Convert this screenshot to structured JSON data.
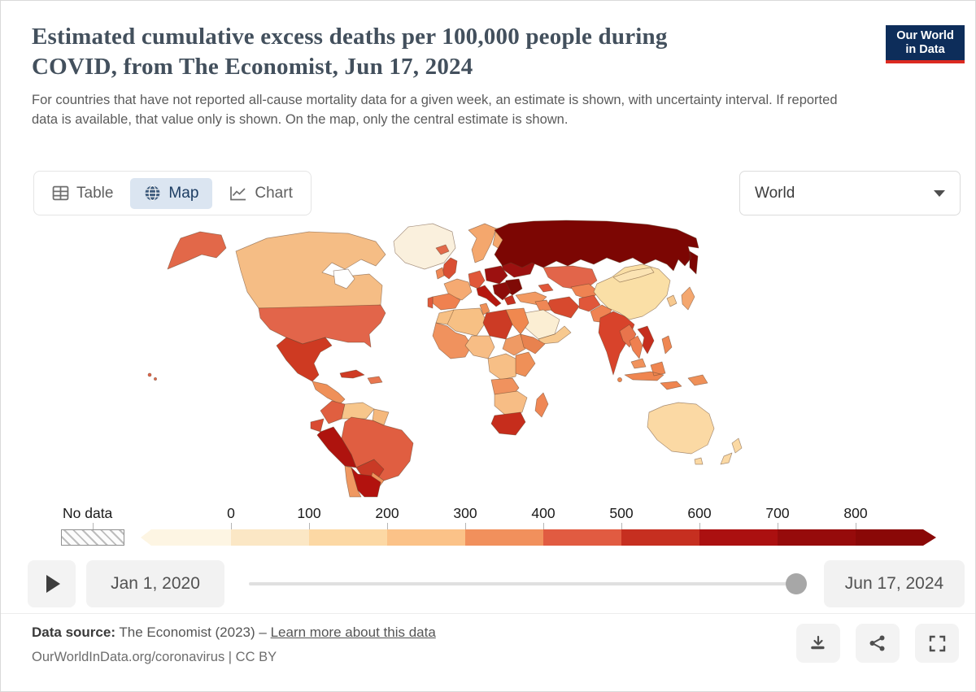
{
  "header": {
    "title_lines": [
      "Estimated cumulative excess deaths per 100,000 people during",
      "COVID, from The Economist, Jun 17, 2024"
    ],
    "subtitle": "For countries that have not reported all-cause mortality data for a given week, an estimate is shown, with uncertainty interval. If reported data is available, that value only is shown. On the map, only the central estimate is shown.",
    "logo": {
      "line1": "Our World",
      "line2": "in Data",
      "navy": "#0d2d5a",
      "red": "#dc2a20"
    }
  },
  "tabs": [
    {
      "id": "table",
      "label": "Table",
      "active": false
    },
    {
      "id": "map",
      "label": "Map",
      "active": true
    },
    {
      "id": "chart",
      "label": "Chart",
      "active": false
    }
  ],
  "region_dropdown": {
    "value": "World"
  },
  "colors": {
    "active_tab_bg": "#dbe5f1",
    "active_tab_text": "#1d3d63",
    "title_text": "#43505d"
  },
  "legend": {
    "nodata_label": "No data",
    "tick_labels": [
      "0",
      "100",
      "200",
      "300",
      "400",
      "500",
      "600",
      "700",
      "800"
    ],
    "colors": [
      "#fdf5e3",
      "#fbe7c5",
      "#fcd8a4",
      "#fbc288",
      "#f1905c",
      "#e15b41",
      "#c62f20",
      "#ab1010",
      "#960b0b",
      "#8a0807"
    ]
  },
  "timeline": {
    "start_label": "Jan 1, 2020",
    "end_label": "Jun 17, 2024",
    "slider_position_percent": 98.2
  },
  "footer": {
    "source_prefix": "Data source:",
    "source_text": "The Economist (2023)",
    "separator": "–",
    "link_label": "Learn more about this data",
    "attribution": "OurWorldInData.org/coronavirus | CC BY"
  },
  "map": {
    "regions": [
      {
        "id": "greenland",
        "color": "#faf0dd"
      },
      {
        "id": "canada",
        "color": "#f5bd85"
      },
      {
        "id": "alaska",
        "color": "#e26849"
      },
      {
        "id": "usa",
        "color": "#e2654a"
      },
      {
        "id": "mexico",
        "color": "#ce3a22"
      },
      {
        "id": "central-america",
        "color": "#ef9058"
      },
      {
        "id": "cuba",
        "color": "#cf3b24"
      },
      {
        "id": "hispaniola",
        "color": "#e8764f"
      },
      {
        "id": "hawaii",
        "color": "#e2654a"
      },
      {
        "id": "colombia",
        "color": "#e05f40"
      },
      {
        "id": "venezuela",
        "color": "#f7c68b"
      },
      {
        "id": "guyanas",
        "color": "#f5b87c"
      },
      {
        "id": "ecuador",
        "color": "#d94b31"
      },
      {
        "id": "peru",
        "color": "#ae130e"
      },
      {
        "id": "brazil",
        "color": "#e05e41"
      },
      {
        "id": "bolivia",
        "color": "#c93a26"
      },
      {
        "id": "paraguay",
        "color": "#f0925c"
      },
      {
        "id": "chile",
        "color": "#ef9861"
      },
      {
        "id": "argentina",
        "color": "#b2120e"
      },
      {
        "id": "iceland",
        "color": "#e26a4a"
      },
      {
        "id": "uk",
        "color": "#d94f33"
      },
      {
        "id": "ireland",
        "color": "#ef8755"
      },
      {
        "id": "norway-sweden",
        "color": "#f4a76d"
      },
      {
        "id": "finland",
        "color": "#f4a76d"
      },
      {
        "id": "france",
        "color": "#f5aa72"
      },
      {
        "id": "spain",
        "color": "#ef8150"
      },
      {
        "id": "portugal",
        "color": "#e05b3d"
      },
      {
        "id": "germany",
        "color": "#e0573a"
      },
      {
        "id": "italy",
        "color": "#b5170f"
      },
      {
        "id": "central-europe",
        "color": "#9c1110"
      },
      {
        "id": "balkans",
        "color": "#8c0d0a"
      },
      {
        "id": "romania-bulgaria",
        "color": "#7f0a06"
      },
      {
        "id": "ukraine-belarus",
        "color": "#9c1110"
      },
      {
        "id": "greece",
        "color": "#c62f20"
      },
      {
        "id": "russia",
        "color": "#7c0603"
      },
      {
        "id": "turkey",
        "color": "#f29a62"
      },
      {
        "id": "caucasus",
        "color": "#e0573a"
      },
      {
        "id": "kazakhstan",
        "color": "#e2654a"
      },
      {
        "id": "central-asia",
        "color": "#ef8352"
      },
      {
        "id": "iran",
        "color": "#d7492e"
      },
      {
        "id": "iraq",
        "color": "#ef8755"
      },
      {
        "id": "saudi-arabia",
        "color": "#fbeed3"
      },
      {
        "id": "yemen-oman",
        "color": "#f7c98f"
      },
      {
        "id": "afghanistan",
        "color": "#e0573a"
      },
      {
        "id": "pakistan",
        "color": "#ef8352"
      },
      {
        "id": "india",
        "color": "#d8432b"
      },
      {
        "id": "sri-lanka",
        "color": "#f0884f"
      },
      {
        "id": "china",
        "color": "#fadfa6"
      },
      {
        "id": "mongolia",
        "color": "#fbe3b3"
      },
      {
        "id": "south-korea",
        "color": "#f7c98f"
      },
      {
        "id": "japan",
        "color": "#f4a76f"
      },
      {
        "id": "myanmar",
        "color": "#e8744c"
      },
      {
        "id": "thailand",
        "color": "#ef8050"
      },
      {
        "id": "vietnam",
        "color": "#c62e1e"
      },
      {
        "id": "malaysia",
        "color": "#f0925c"
      },
      {
        "id": "indonesia",
        "color": "#ef8550"
      },
      {
        "id": "philippines",
        "color": "#ef8753"
      },
      {
        "id": "papua-new-guinea",
        "color": "#ef9058"
      },
      {
        "id": "australia",
        "color": "#fbd9a4"
      },
      {
        "id": "tasmania",
        "color": "#fbd9a4"
      },
      {
        "id": "new-zealand",
        "color": "#fbd9a4"
      },
      {
        "id": "morocco",
        "color": "#f7c084"
      },
      {
        "id": "algeria",
        "color": "#f7c084"
      },
      {
        "id": "tunisia",
        "color": "#ef9058"
      },
      {
        "id": "libya",
        "color": "#cc3b25"
      },
      {
        "id": "egypt",
        "color": "#f0884f"
      },
      {
        "id": "west-africa",
        "color": "#f0925e"
      },
      {
        "id": "nigeria-sahel",
        "color": "#f7bd85"
      },
      {
        "id": "sudan",
        "color": "#ef9a64"
      },
      {
        "id": "horn-of-africa",
        "color": "#e8824f"
      },
      {
        "id": "central-africa",
        "color": "#f7bf86"
      },
      {
        "id": "east-africa",
        "color": "#ef9058"
      },
      {
        "id": "angola-zambia",
        "color": "#f0925e"
      },
      {
        "id": "southern-africa",
        "color": "#f7bd85"
      },
      {
        "id": "south-africa",
        "color": "#c62d1c"
      },
      {
        "id": "madagascar",
        "color": "#ef8755"
      }
    ]
  }
}
